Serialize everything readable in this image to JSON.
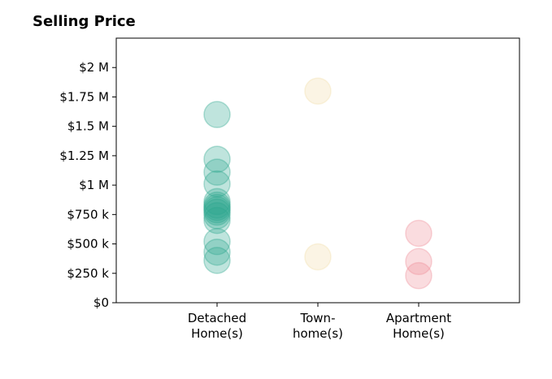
{
  "chart_data": {
    "type": "scatter",
    "title": "Selling Price",
    "xlabel": "",
    "ylabel": "",
    "ylim": [
      0,
      2250000
    ],
    "yticks": [
      0,
      250000,
      500000,
      750000,
      1000000,
      1250000,
      1500000,
      1750000,
      2000000
    ],
    "ytick_labels": [
      "$0",
      "$250 k",
      "$500 k",
      "$750 k",
      "$1 M",
      "$1.25 M",
      "$1.5 M",
      "$1.75 M",
      "$2 M"
    ],
    "categories": [
      [
        "Detached",
        "Home(s)"
      ],
      [
        "Town-",
        "home(s)"
      ],
      [
        "Apartment",
        "Home(s)"
      ]
    ],
    "grid": false,
    "legend": "none",
    "series": [
      {
        "category_index": 0,
        "color": "#2ca58d",
        "values": [
          1600000,
          1220000,
          1110000,
          1010000,
          860000,
          830000,
          810000,
          790000,
          770000,
          740000,
          700000,
          520000,
          430000,
          360000
        ]
      },
      {
        "category_index": 1,
        "color": "#f2dca7",
        "values": [
          1800000,
          390000
        ]
      },
      {
        "category_index": 2,
        "color": "#ef8a95",
        "values": [
          590000,
          350000,
          230000
        ]
      }
    ]
  }
}
